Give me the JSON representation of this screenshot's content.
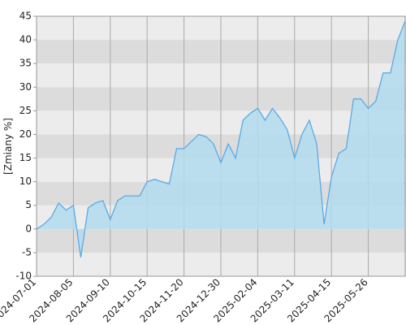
{
  "chart_data": {
    "type": "area",
    "y_label": "[Zmiany %]",
    "categories": [
      "2024-07-01",
      null,
      null,
      null,
      null,
      "2024-08-05",
      null,
      null,
      null,
      null,
      "2024-09-10",
      null,
      null,
      null,
      null,
      "2024-10-15",
      null,
      null,
      null,
      null,
      "2024-11-20",
      null,
      null,
      null,
      null,
      "2024-12-30",
      null,
      null,
      null,
      null,
      "2025-02-04",
      null,
      null,
      null,
      null,
      "2025-03-11",
      null,
      null,
      null,
      null,
      "2025-04-15",
      null,
      null,
      null,
      null,
      "2025-05-26",
      null,
      null,
      null,
      null,
      null
    ],
    "values": [
      0,
      1,
      2.5,
      5.5,
      4,
      5,
      -6,
      4.5,
      5.5,
      6,
      2,
      6,
      7,
      7,
      7,
      10,
      10.5,
      10,
      9.5,
      17,
      17,
      18.5,
      20,
      19.5,
      18,
      14,
      18,
      15,
      23,
      24.5,
      25.5,
      23,
      25.5,
      23.5,
      21,
      15,
      20,
      23,
      18,
      1,
      11,
      16,
      17,
      27.5,
      27.5,
      25.5,
      27,
      33,
      33,
      40,
      44
    ],
    "color": "#5aaae6",
    "fill_color": "#b3dcee",
    "ylim": [
      -10,
      45
    ],
    "yticks": [
      -10,
      -5,
      0,
      5,
      10,
      15,
      20,
      25,
      30,
      35,
      40,
      45
    ],
    "grid": true
  }
}
